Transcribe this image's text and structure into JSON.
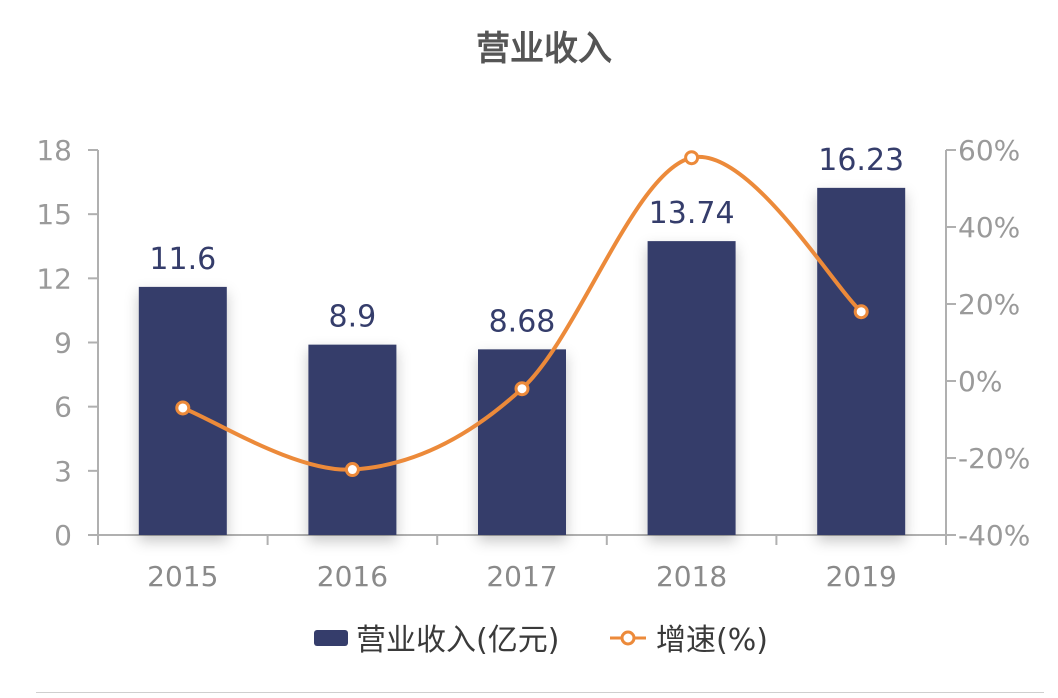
{
  "chart_data": {
    "type": "bar",
    "title": "营业收入",
    "categories": [
      "2015",
      "2016",
      "2017",
      "2018",
      "2019"
    ],
    "series": [
      {
        "name": "营业收入(亿元)",
        "type": "bar",
        "axis": "left",
        "values": [
          11.6,
          8.9,
          8.68,
          13.74,
          16.23
        ],
        "color": "#353d6b"
      },
      {
        "name": "增速(%)",
        "type": "line",
        "axis": "right",
        "values": [
          -7,
          -23,
          -2,
          58,
          18
        ],
        "color": "#ec8a3a"
      }
    ],
    "y_left": {
      "range": [
        0,
        18
      ],
      "ticks": [
        "0",
        "3",
        "6",
        "9",
        "12",
        "15",
        "18"
      ]
    },
    "y_right": {
      "range": [
        -40,
        60
      ],
      "ticks": [
        "-40%",
        "-20%",
        "0%",
        "20%",
        "40%",
        "60%"
      ]
    },
    "data_labels": [
      "11.6",
      "8.9",
      "8.68",
      "13.74",
      "16.23"
    ],
    "legend": {
      "placement": "bottom",
      "items": [
        "营业收入(亿元)",
        "增速(%)"
      ]
    },
    "grid": false
  }
}
